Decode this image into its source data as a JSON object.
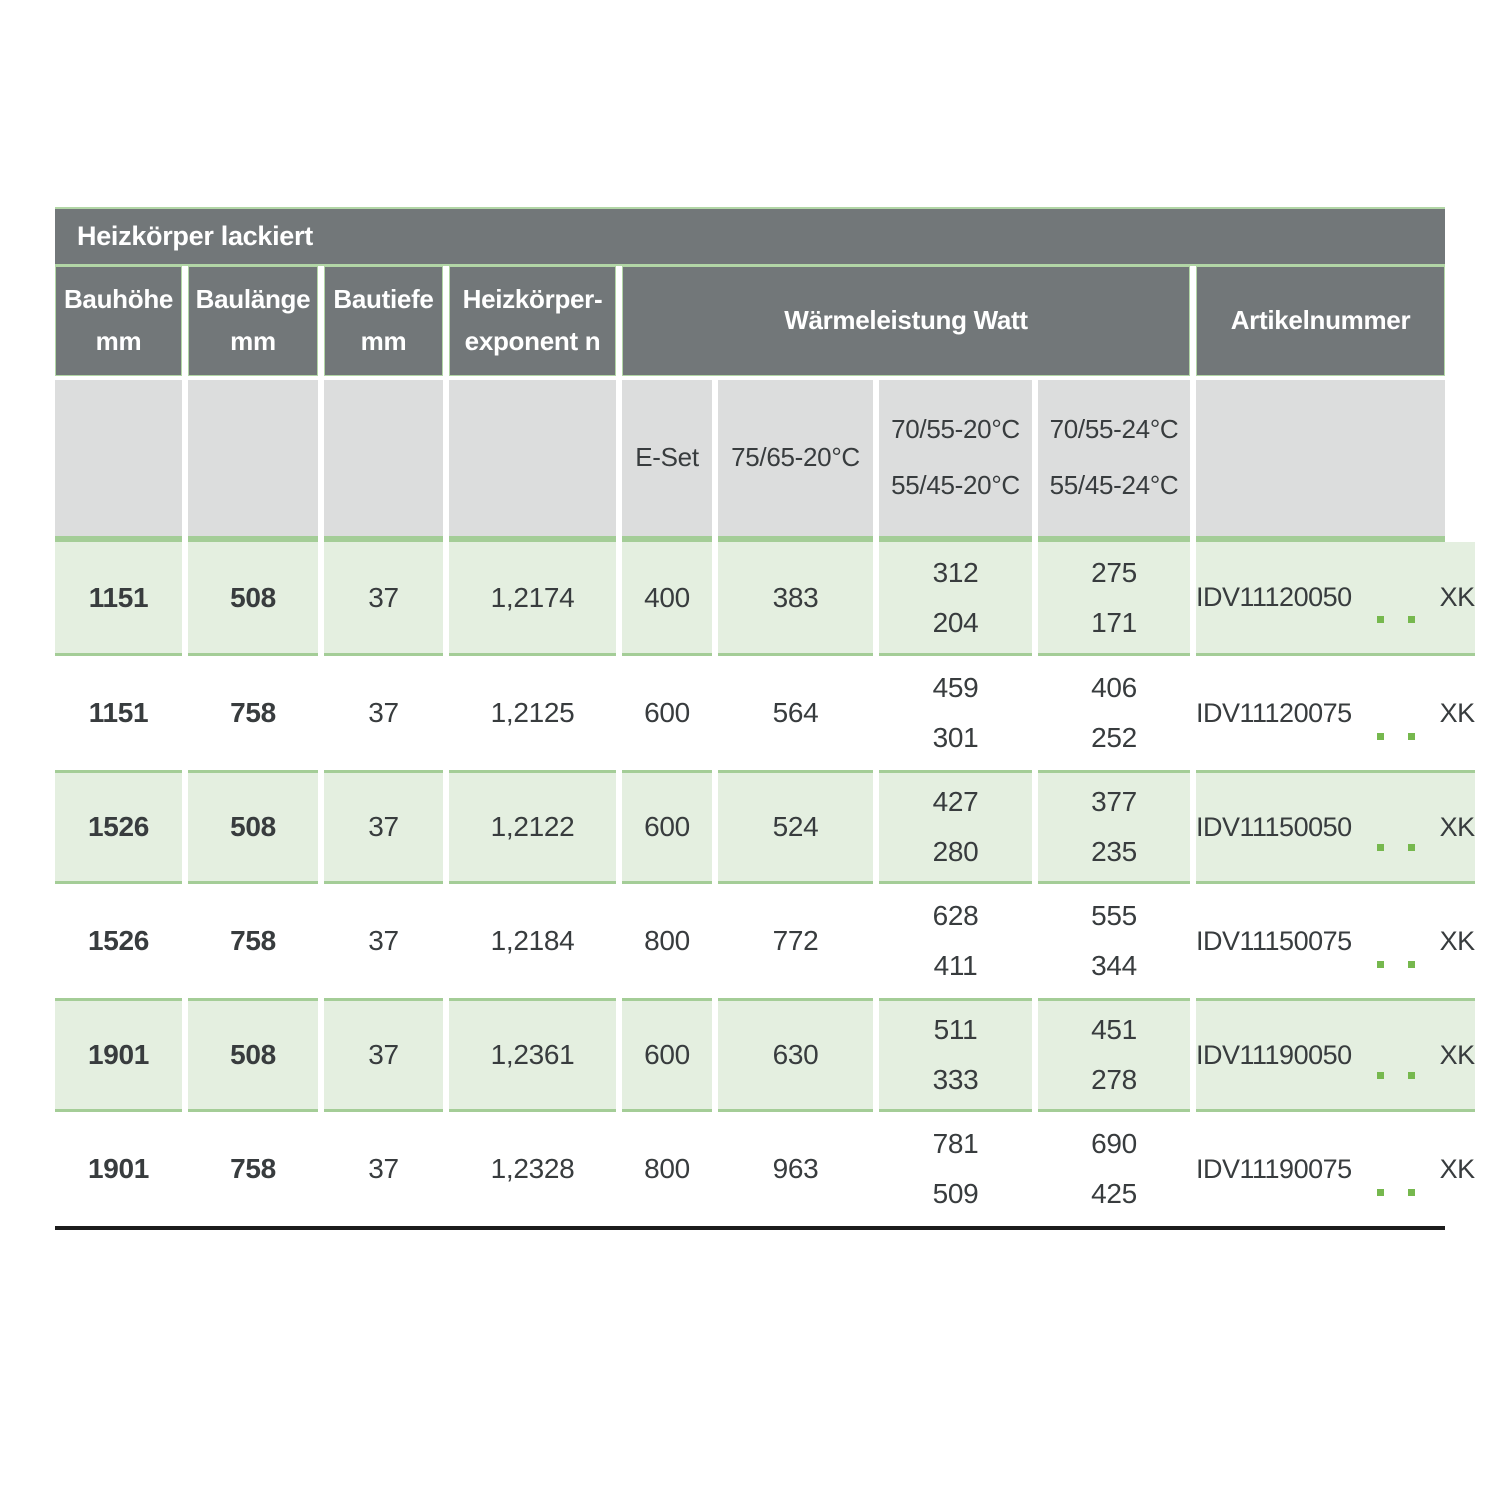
{
  "title": "Heizkörper lackiert",
  "columns": {
    "bauhoehe": {
      "l1": "Bauhöhe",
      "l2": "mm"
    },
    "baulaenge": {
      "l1": "Baulänge",
      "l2": "mm"
    },
    "bautiefe": {
      "l1": "Bautiefe",
      "l2": "mm"
    },
    "exponent": {
      "l1": "Heizkörper-",
      "l2": "exponent n"
    },
    "waermeleistung": "Wärmeleistung Watt",
    "artikelnummer": "Artikelnummer"
  },
  "subcolumns": {
    "e_set": "E-Set",
    "t7565": "75/65-20°C",
    "t70_20": "70/55-20°C",
    "t55_20": "55/45-20°C",
    "t70_24": "70/55-24°C",
    "t55_24": "55/45-24°C"
  },
  "rows": [
    {
      "bauhoehe": "1151",
      "baulaenge": "508",
      "bautiefe": "37",
      "exponent": "1,2174",
      "e_set": "400",
      "w7565": "383",
      "w70_20": "312",
      "w55_20": "204",
      "w70_24": "275",
      "w55_24": "171",
      "artikel_prefix": "IDV11120050",
      "artikel_suffix": "XK"
    },
    {
      "bauhoehe": "1151",
      "baulaenge": "758",
      "bautiefe": "37",
      "exponent": "1,2125",
      "e_set": "600",
      "w7565": "564",
      "w70_20": "459",
      "w55_20": "301",
      "w70_24": "406",
      "w55_24": "252",
      "artikel_prefix": "IDV11120075",
      "artikel_suffix": "XK"
    },
    {
      "bauhoehe": "1526",
      "baulaenge": "508",
      "bautiefe": "37",
      "exponent": "1,2122",
      "e_set": "600",
      "w7565": "524",
      "w70_20": "427",
      "w55_20": "280",
      "w70_24": "377",
      "w55_24": "235",
      "artikel_prefix": "IDV11150050",
      "artikel_suffix": "XK"
    },
    {
      "bauhoehe": "1526",
      "baulaenge": "758",
      "bautiefe": "37",
      "exponent": "1,2184",
      "e_set": "800",
      "w7565": "772",
      "w70_20": "628",
      "w55_20": "411",
      "w70_24": "555",
      "w55_24": "344",
      "artikel_prefix": "IDV11150075",
      "artikel_suffix": "XK"
    },
    {
      "bauhoehe": "1901",
      "baulaenge": "508",
      "bautiefe": "37",
      "exponent": "1,2361",
      "e_set": "600",
      "w7565": "630",
      "w70_20": "511",
      "w55_20": "333",
      "w70_24": "451",
      "w55_24": "278",
      "artikel_prefix": "IDV11190050",
      "artikel_suffix": "XK"
    },
    {
      "bauhoehe": "1901",
      "baulaenge": "758",
      "bautiefe": "37",
      "exponent": "1,2328",
      "e_set": "800",
      "w7565": "963",
      "w70_20": "781",
      "w55_20": "509",
      "w70_24": "690",
      "w55_24": "425",
      "artikel_prefix": "IDV11190075",
      "artikel_suffix": "XK"
    }
  ],
  "colors": {
    "header_bg": "#727779",
    "subheader_bg": "#dcdddd",
    "row_green_bg": "#e4efe0",
    "row_white_bg": "#ffffff",
    "border_green": "#a4cd97",
    "accent_green": "#76b84e",
    "bottom_rule": "#1c1c1c"
  }
}
